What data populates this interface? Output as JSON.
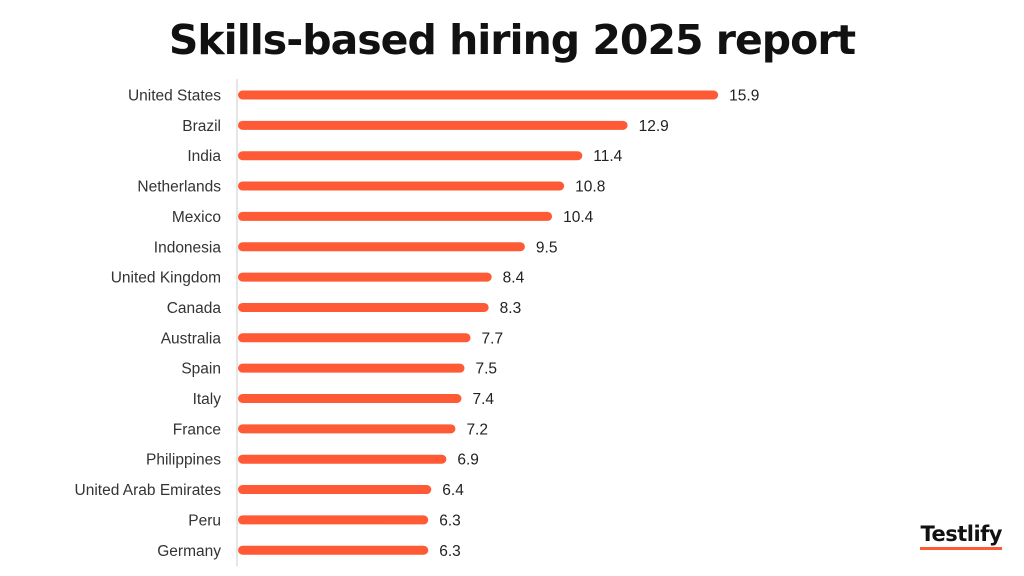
{
  "colors": {
    "bar": "#ff5a36",
    "axis": "#cccccc",
    "text": "#333333"
  },
  "logo": {
    "text": "Testlify"
  },
  "chart_data": {
    "type": "bar",
    "orientation": "horizontal",
    "title": "Skills-based hiring 2025 report",
    "xlabel": "",
    "ylabel": "",
    "xlim": [
      0,
      18
    ],
    "grid": false,
    "legend": "none",
    "categories": [
      "United States",
      "Brazil",
      "India",
      "Netherlands",
      "Mexico",
      "Indonesia",
      "United Kingdom",
      "Canada",
      "Australia",
      "Spain",
      "Italy",
      "France",
      "Philippines",
      "United Arab Emirates",
      "Peru",
      "Germany"
    ],
    "values": [
      15.9,
      12.9,
      11.4,
      10.8,
      10.4,
      9.5,
      8.4,
      8.3,
      7.7,
      7.5,
      7.4,
      7.2,
      6.9,
      6.4,
      6.3,
      6.3
    ],
    "value_labels": [
      "15.9",
      "12.9",
      "11.4",
      "10.8",
      "10.4",
      "9.5",
      "8.4",
      "8.3",
      "7.7",
      "7.5",
      "7.4",
      "7.2",
      "6.9",
      "6.4",
      "6.3",
      "6.3"
    ]
  }
}
